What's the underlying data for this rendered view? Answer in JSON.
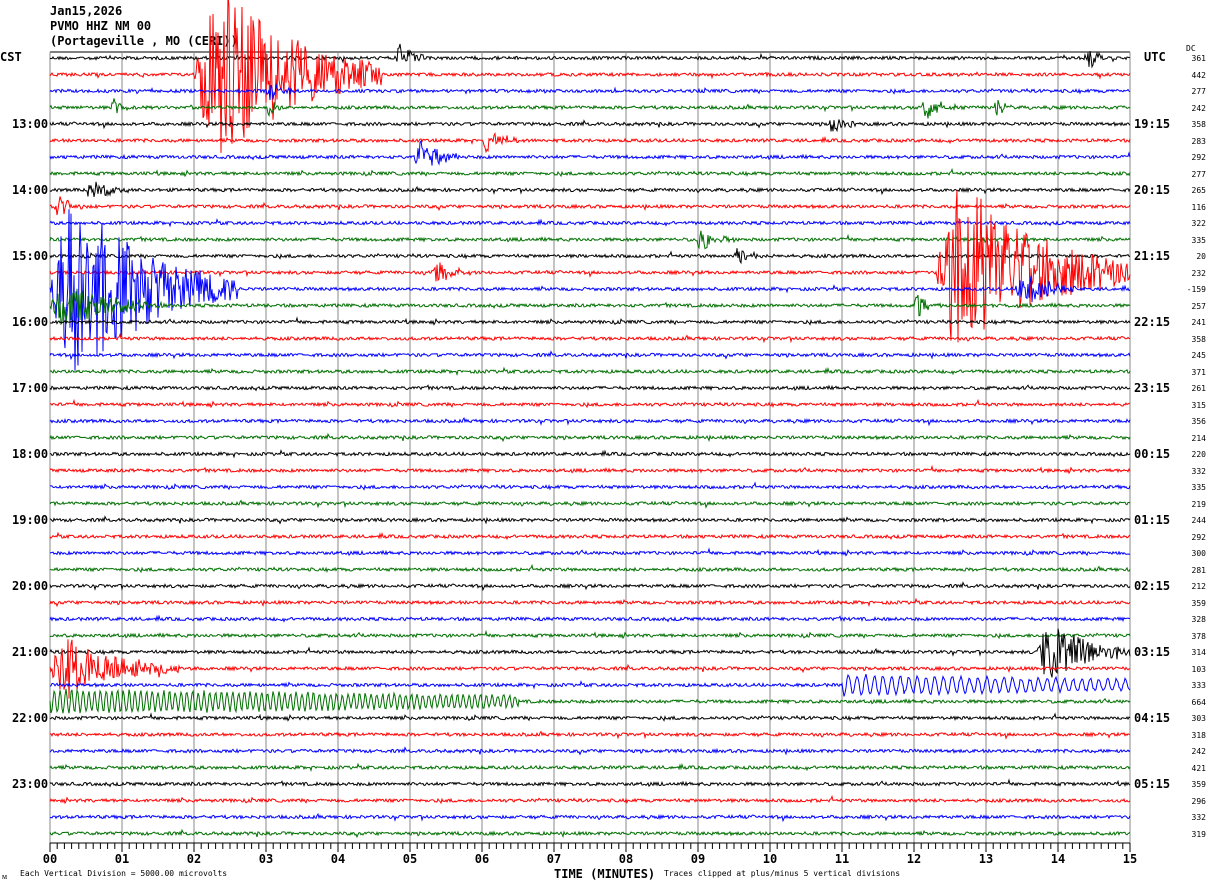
{
  "header": {
    "date": "Jan15,2026",
    "station": "PVMO HHZ NM 00",
    "location": "(Portageville , MO (CERI))"
  },
  "chart_data": {
    "type": "line",
    "title": "Jan15,2026 PVMO HHZ NM 00 (Portageville , MO (CERI))",
    "xlabel": "TIME (MINUTES)",
    "xlim": [
      0,
      15
    ],
    "x_ticks": [
      "00",
      "01",
      "02",
      "03",
      "04",
      "05",
      "06",
      "07",
      "08",
      "09",
      "10",
      "11",
      "12",
      "13",
      "14",
      "15"
    ],
    "left_timezone": "CST",
    "right_timezone": "UTC",
    "left_hour_labels": [
      "13:00",
      "14:00",
      "15:00",
      "16:00",
      "17:00",
      "18:00",
      "19:00",
      "20:00",
      "21:00",
      "22:00",
      "23:00"
    ],
    "right_hour_labels": [
      "19:15",
      "20:15",
      "21:15",
      "22:15",
      "23:15",
      "00:15",
      "01:15",
      "02:15",
      "03:15",
      "04:15",
      "05:15"
    ],
    "dc_label": "DC",
    "dc_offsets": [
      361,
      442,
      277,
      242,
      358,
      283,
      292,
      277,
      265,
      116,
      322,
      335,
      20,
      232,
      -159,
      257,
      241,
      358,
      245,
      371,
      261,
      315,
      356,
      214,
      220,
      332,
      335,
      219,
      244,
      292,
      300,
      281,
      212,
      359,
      328,
      378,
      314,
      103,
      333,
      664,
      303,
      318,
      242,
      421,
      359,
      296,
      332,
      319
    ],
    "trace_colors": [
      "#000000",
      "#ff0000",
      "#0000ff",
      "#007000"
    ],
    "clip_divisions": 5,
    "grid": true,
    "events": [
      {
        "trace": 0,
        "start": 4.8,
        "end": 5.2,
        "amp": 0.8
      },
      {
        "trace": 0,
        "start": 14.4,
        "end": 14.7,
        "amp": 0.7
      },
      {
        "trace": 1,
        "start": 2.0,
        "end": 4.6,
        "amp": 5
      },
      {
        "trace": 2,
        "start": 3.0,
        "end": 3.4,
        "amp": 0.6
      },
      {
        "trace": 3,
        "start": 0.85,
        "end": 1.2,
        "amp": 0.6
      },
      {
        "trace": 3,
        "start": 3.0,
        "end": 3.3,
        "amp": 0.5
      },
      {
        "trace": 3,
        "start": 12.1,
        "end": 12.6,
        "amp": 0.7
      },
      {
        "trace": 3,
        "start": 13.1,
        "end": 13.4,
        "amp": 0.5
      },
      {
        "trace": 4,
        "start": 10.8,
        "end": 11.3,
        "amp": 0.6
      },
      {
        "trace": 5,
        "start": 6.0,
        "end": 6.5,
        "amp": 0.6
      },
      {
        "trace": 6,
        "start": 5.05,
        "end": 5.7,
        "amp": 0.9
      },
      {
        "trace": 8,
        "start": 0.5,
        "end": 1.1,
        "amp": 0.6
      },
      {
        "trace": 9,
        "start": 0.05,
        "end": 0.5,
        "amp": 0.7
      },
      {
        "trace": 11,
        "start": 8.95,
        "end": 9.5,
        "amp": 0.7
      },
      {
        "trace": 12,
        "start": 9.5,
        "end": 9.9,
        "amp": 0.6
      },
      {
        "trace": 13,
        "start": 5.3,
        "end": 5.8,
        "amp": 0.7
      },
      {
        "trace": 13,
        "start": 12.3,
        "end": 15,
        "amp": 5
      },
      {
        "trace": 14,
        "start": 0.0,
        "end": 2.6,
        "amp": 5
      },
      {
        "trace": 14,
        "start": 13.4,
        "end": 14.3,
        "amp": 1.0
      },
      {
        "trace": 15,
        "start": 0.0,
        "end": 1.6,
        "amp": 1.2
      },
      {
        "trace": 15,
        "start": 12.0,
        "end": 12.4,
        "amp": 0.7
      },
      {
        "trace": 36,
        "start": 13.7,
        "end": 15,
        "amp": 1.7
      },
      {
        "trace": 37,
        "start": 0.0,
        "end": 1.8,
        "amp": 1.7
      },
      {
        "trace": 38,
        "start": 11.0,
        "end": 15,
        "amp": 0.6,
        "period": 0.12
      },
      {
        "trace": 39,
        "start": 0.0,
        "end": 6.5,
        "amp": 0.7,
        "period": 0.08
      }
    ]
  },
  "footer": {
    "scale_note": "Each Vertical Division = 5000.00 microvolts",
    "clip_note": "Traces clipped at plus/minus 5 vertical divisions",
    "corner_mark": "ᴍ"
  }
}
